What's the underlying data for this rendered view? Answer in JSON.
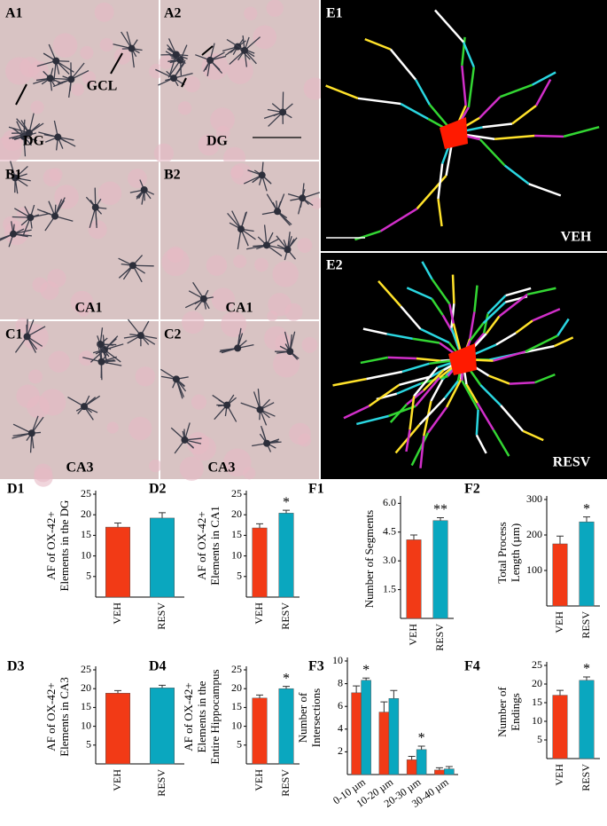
{
  "image_panels": [
    {
      "label": "A1",
      "texts": [
        "GCL",
        "DG"
      ]
    },
    {
      "label": "A2",
      "texts": [
        "DG"
      ]
    },
    {
      "label": "B1",
      "texts": [
        "CA1"
      ]
    },
    {
      "label": "B2",
      "texts": [
        "CA1"
      ]
    },
    {
      "label": "C1",
      "texts": [
        "CA3"
      ]
    },
    {
      "label": "C2",
      "texts": [
        "CA3"
      ]
    },
    {
      "label": "E1",
      "texts": [
        "VEH"
      ]
    },
    {
      "label": "E2",
      "texts": [
        "RESV"
      ]
    }
  ],
  "chart_data": [
    {
      "type": "bar",
      "label": "D1",
      "ylabel": [
        "AF of OX-42+",
        "Elements in the DG"
      ],
      "categories": [
        "VEH",
        "RESV"
      ],
      "series": [
        {
          "colors": [
            "#f23a16",
            "#0aa7bf"
          ],
          "values": [
            17,
            19.2
          ],
          "errors": [
            1,
            1.3
          ],
          "significance": [
            null,
            null
          ]
        }
      ],
      "ylim": [
        0,
        25
      ],
      "yticks": [
        5,
        10,
        15,
        20,
        25
      ]
    },
    {
      "type": "bar",
      "label": "D2",
      "ylabel": [
        "AF of OX-42+",
        "Elements in CA1"
      ],
      "categories": [
        "VEH",
        "RESV"
      ],
      "series": [
        {
          "colors": [
            "#f23a16",
            "#0aa7bf"
          ],
          "values": [
            16.8,
            20.4
          ],
          "errors": [
            1,
            0.7
          ],
          "significance": [
            null,
            "*"
          ]
        }
      ],
      "ylim": [
        0,
        25
      ],
      "yticks": [
        5,
        10,
        15,
        20,
        25
      ]
    },
    {
      "type": "bar",
      "label": "F1",
      "ylabel": [
        "Number of Segments"
      ],
      "categories": [
        "VEH",
        "RESV"
      ],
      "series": [
        {
          "colors": [
            "#f23a16",
            "#0aa7bf"
          ],
          "values": [
            4.1,
            5.1
          ],
          "errors": [
            0.25,
            0.15
          ],
          "significance": [
            null,
            "**"
          ]
        }
      ],
      "ylim": [
        0,
        6.2
      ],
      "yticks": [
        1.5,
        {
          "value": 3,
          "label": "3.0"
        },
        4.5,
        {
          "value": 6,
          "label": "6.0"
        }
      ]
    },
    {
      "type": "bar",
      "label": "F2",
      "ylabel": [
        "Total Process",
        "Length (µm)"
      ],
      "categories": [
        "VEH",
        "RESV"
      ],
      "series": [
        {
          "colors": [
            "#f23a16",
            "#0aa7bf"
          ],
          "values": [
            175,
            237
          ],
          "errors": [
            22,
            14
          ],
          "significance": [
            null,
            "*"
          ]
        }
      ],
      "ylim": [
        0,
        300
      ],
      "yticks": [
        100,
        200,
        300
      ]
    },
    {
      "type": "bar",
      "label": "D3",
      "ylabel": [
        "AF of OX-42+",
        "Elements in CA3"
      ],
      "categories": [
        "VEH",
        "RESV"
      ],
      "series": [
        {
          "colors": [
            "#f23a16",
            "#0aa7bf"
          ],
          "values": [
            18.8,
            20.2
          ],
          "errors": [
            0.7,
            0.7
          ],
          "significance": [
            null,
            null
          ]
        }
      ],
      "ylim": [
        0,
        25
      ],
      "yticks": [
        5,
        10,
        15,
        20,
        25
      ]
    },
    {
      "type": "bar",
      "label": "D4",
      "ylabel": [
        "AF of OX-42+",
        "Elements in the",
        "Entire Hippocampus"
      ],
      "categories": [
        "VEH",
        "RESV"
      ],
      "series": [
        {
          "colors": [
            "#f23a16",
            "#0aa7bf"
          ],
          "values": [
            17.5,
            20
          ],
          "errors": [
            0.8,
            0.6
          ],
          "significance": [
            null,
            "*"
          ]
        }
      ],
      "ylim": [
        0,
        25
      ],
      "yticks": [
        5,
        10,
        15,
        20,
        25
      ]
    },
    {
      "type": "groupedbar",
      "label": "F3",
      "ylabel": [
        "Number of",
        "Intersections"
      ],
      "categories": [
        "0-10 µm",
        "10-20 µm",
        "20-30 µm",
        "30-40 µm"
      ],
      "series": [
        {
          "color": "#f23a16",
          "values": [
            7.2,
            5.5,
            1.3,
            0.4
          ],
          "errors": [
            0.6,
            0.9,
            0.3,
            0.2
          ],
          "significance": [
            null,
            null,
            null,
            null
          ]
        },
        {
          "color": "#0aa7bf",
          "values": [
            8.3,
            6.7,
            2.2,
            0.5
          ],
          "errors": [
            0.2,
            0.7,
            0.3,
            0.2
          ],
          "significance": [
            "*",
            null,
            "*",
            null
          ]
        }
      ],
      "ylim": [
        0,
        10
      ],
      "yticks": [
        2,
        4,
        6,
        8,
        10
      ]
    },
    {
      "type": "bar",
      "label": "F4",
      "ylabel": [
        "Number of",
        "Endings"
      ],
      "categories": [
        "VEH",
        "RESV"
      ],
      "series": [
        {
          "colors": [
            "#f23a16",
            "#0aa7bf"
          ],
          "values": [
            17,
            21
          ],
          "errors": [
            1.3,
            0.9
          ],
          "significance": [
            null,
            "*"
          ]
        }
      ],
      "ylim": [
        0,
        25
      ],
      "yticks": [
        5,
        10,
        15,
        20,
        25
      ]
    }
  ]
}
